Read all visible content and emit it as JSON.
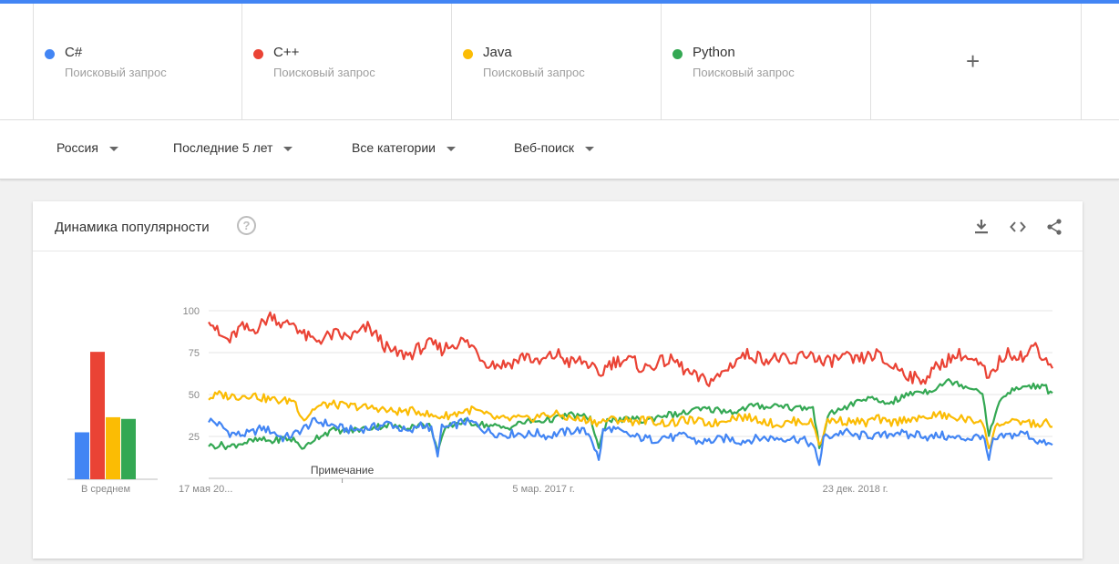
{
  "terms": [
    {
      "name": "C#",
      "subtitle": "Поисковый запрос",
      "color": "#4285f4"
    },
    {
      "name": "C++",
      "subtitle": "Поисковый запрос",
      "color": "#ea4335"
    },
    {
      "name": "Java",
      "subtitle": "Поисковый запрос",
      "color": "#fbbc04"
    },
    {
      "name": "Python",
      "subtitle": "Поисковый запрос",
      "color": "#34a853"
    }
  ],
  "add_term_icon": "+",
  "filters": {
    "region": "Россия",
    "period": "Последние 5 лет",
    "category": "Все категории",
    "search_type": "Веб-поиск"
  },
  "card": {
    "title": "Динамика популярности",
    "help_icon": "?",
    "icons": [
      "download-icon",
      "embed-icon",
      "share-icon"
    ]
  },
  "chart_data": {
    "type": "line",
    "y_ticks": [
      "100",
      "75",
      "50",
      "25"
    ],
    "ylim": [
      0,
      100
    ],
    "x_labels": [
      "17 мая 20...",
      "5 мар. 2017 г.",
      "23 дек. 2018 г."
    ],
    "note_label": "Примечание",
    "average_label": "В среднем",
    "grid": true,
    "averages": [
      {
        "name": "C#",
        "value": 28
      },
      {
        "name": "C++",
        "value": 76
      },
      {
        "name": "Java",
        "value": 37
      },
      {
        "name": "Python",
        "value": 36
      }
    ],
    "anchors": {
      "C#": [
        [
          0,
          35
        ],
        [
          5,
          32
        ],
        [
          10,
          27
        ],
        [
          15,
          26
        ],
        [
          20,
          27
        ],
        [
          25,
          30
        ],
        [
          30,
          28
        ],
        [
          35,
          24
        ],
        [
          40,
          26
        ],
        [
          45,
          30
        ],
        [
          50,
          34
        ],
        [
          55,
          33
        ],
        [
          60,
          31
        ],
        [
          65,
          29
        ],
        [
          70,
          29
        ],
        [
          75,
          30
        ],
        [
          80,
          31
        ],
        [
          85,
          33
        ],
        [
          90,
          30
        ],
        [
          95,
          27
        ],
        [
          100,
          33
        ],
        [
          105,
          29
        ],
        [
          108,
          13
        ],
        [
          110,
          30
        ],
        [
          115,
          31
        ],
        [
          120,
          34
        ],
        [
          125,
          33
        ],
        [
          130,
          29
        ],
        [
          135,
          27
        ],
        [
          140,
          26
        ],
        [
          145,
          27
        ],
        [
          150,
          26
        ],
        [
          155,
          27
        ],
        [
          160,
          25
        ],
        [
          165,
          27
        ],
        [
          170,
          28
        ],
        [
          175,
          29
        ],
        [
          180,
          26
        ],
        [
          184,
          11
        ],
        [
          186,
          28
        ],
        [
          190,
          30
        ],
        [
          195,
          27
        ],
        [
          200,
          25
        ],
        [
          205,
          24
        ],
        [
          210,
          23
        ],
        [
          215,
          25
        ],
        [
          220,
          24
        ],
        [
          225,
          26
        ],
        [
          230,
          22
        ],
        [
          235,
          22
        ],
        [
          240,
          23
        ],
        [
          245,
          24
        ],
        [
          250,
          22
        ],
        [
          255,
          23
        ],
        [
          260,
          24
        ],
        [
          265,
          24
        ],
        [
          270,
          24
        ],
        [
          275,
          24
        ],
        [
          280,
          23
        ],
        [
          285,
          20
        ],
        [
          288,
          8
        ],
        [
          290,
          24
        ],
        [
          295,
          26
        ],
        [
          300,
          28
        ],
        [
          305,
          25
        ],
        [
          310,
          26
        ],
        [
          315,
          25
        ],
        [
          320,
          26
        ],
        [
          325,
          28
        ],
        [
          330,
          25
        ],
        [
          335,
          27
        ],
        [
          340,
          24
        ],
        [
          345,
          26
        ],
        [
          350,
          24
        ],
        [
          355,
          24
        ],
        [
          360,
          24
        ],
        [
          365,
          26
        ],
        [
          368,
          11
        ],
        [
          370,
          22
        ],
        [
          375,
          25
        ],
        [
          380,
          26
        ],
        [
          385,
          27
        ],
        [
          390,
          23
        ],
        [
          395,
          20
        ],
        [
          398,
          20
        ]
      ],
      "C++": [
        [
          0,
          97
        ],
        [
          5,
          85
        ],
        [
          10,
          82
        ],
        [
          15,
          90
        ],
        [
          20,
          88
        ],
        [
          25,
          92
        ],
        [
          30,
          98
        ],
        [
          35,
          91
        ],
        [
          40,
          93
        ],
        [
          45,
          85
        ],
        [
          50,
          82
        ],
        [
          55,
          84
        ],
        [
          60,
          86
        ],
        [
          65,
          84
        ],
        [
          70,
          86
        ],
        [
          75,
          90
        ],
        [
          80,
          84
        ],
        [
          85,
          76
        ],
        [
          90,
          74
        ],
        [
          95,
          74
        ],
        [
          100,
          78
        ],
        [
          105,
          80
        ],
        [
          110,
          77
        ],
        [
          115,
          80
        ],
        [
          120,
          82
        ],
        [
          125,
          78
        ],
        [
          130,
          70
        ],
        [
          135,
          68
        ],
        [
          140,
          68
        ],
        [
          145,
          70
        ],
        [
          150,
          74
        ],
        [
          155,
          68
        ],
        [
          160,
          72
        ],
        [
          165,
          74
        ],
        [
          170,
          69
        ],
        [
          175,
          70
        ],
        [
          180,
          68
        ],
        [
          184,
          60
        ],
        [
          188,
          68
        ],
        [
          195,
          71
        ],
        [
          200,
          70
        ],
        [
          205,
          65
        ],
        [
          210,
          68
        ],
        [
          215,
          70
        ],
        [
          220,
          70
        ],
        [
          225,
          64
        ],
        [
          230,
          60
        ],
        [
          235,
          58
        ],
        [
          240,
          60
        ],
        [
          245,
          66
        ],
        [
          250,
          72
        ],
        [
          255,
          74
        ],
        [
          260,
          72
        ],
        [
          265,
          71
        ],
        [
          270,
          72
        ],
        [
          275,
          67
        ],
        [
          280,
          74
        ],
        [
          285,
          74
        ],
        [
          290,
          68
        ],
        [
          295,
          71
        ],
        [
          300,
          72
        ],
        [
          305,
          70
        ],
        [
          310,
          72
        ],
        [
          315,
          74
        ],
        [
          320,
          68
        ],
        [
          325,
          66
        ],
        [
          330,
          62
        ],
        [
          335,
          58
        ],
        [
          340,
          62
        ],
        [
          345,
          68
        ],
        [
          350,
          72
        ],
        [
          355,
          74
        ],
        [
          360,
          70
        ],
        [
          365,
          66
        ],
        [
          368,
          58
        ],
        [
          372,
          68
        ],
        [
          375,
          73
        ],
        [
          380,
          75
        ],
        [
          385,
          72
        ],
        [
          390,
          80
        ],
        [
          395,
          70
        ],
        [
          398,
          68
        ]
      ],
      "Java": [
        [
          0,
          48
        ],
        [
          5,
          50
        ],
        [
          10,
          49
        ],
        [
          15,
          49
        ],
        [
          20,
          50
        ],
        [
          25,
          48
        ],
        [
          30,
          47
        ],
        [
          35,
          46
        ],
        [
          40,
          47
        ],
        [
          45,
          35
        ],
        [
          50,
          42
        ],
        [
          55,
          44
        ],
        [
          60,
          44
        ],
        [
          65,
          43
        ],
        [
          70,
          43
        ],
        [
          75,
          42
        ],
        [
          80,
          42
        ],
        [
          85,
          40
        ],
        [
          90,
          40
        ],
        [
          95,
          40
        ],
        [
          100,
          40
        ],
        [
          105,
          37
        ],
        [
          110,
          37
        ],
        [
          115,
          38
        ],
        [
          120,
          40
        ],
        [
          125,
          41
        ],
        [
          130,
          38
        ],
        [
          135,
          36
        ],
        [
          140,
          35
        ],
        [
          145,
          36
        ],
        [
          150,
          35
        ],
        [
          155,
          37
        ],
        [
          160,
          38
        ],
        [
          165,
          38
        ],
        [
          170,
          36
        ],
        [
          175,
          35
        ],
        [
          180,
          35
        ],
        [
          184,
          33
        ],
        [
          188,
          35
        ],
        [
          195,
          35
        ],
        [
          200,
          34
        ],
        [
          205,
          35
        ],
        [
          210,
          34
        ],
        [
          215,
          33
        ],
        [
          220,
          33
        ],
        [
          225,
          35
        ],
        [
          230,
          34
        ],
        [
          235,
          33
        ],
        [
          240,
          33
        ],
        [
          245,
          36
        ],
        [
          250,
          37
        ],
        [
          255,
          36
        ],
        [
          260,
          35
        ],
        [
          265,
          33
        ],
        [
          270,
          32
        ],
        [
          275,
          34
        ],
        [
          280,
          34
        ],
        [
          285,
          33
        ],
        [
          288,
          20
        ],
        [
          292,
          34
        ],
        [
          295,
          35
        ],
        [
          300,
          34
        ],
        [
          305,
          34
        ],
        [
          310,
          33
        ],
        [
          315,
          36
        ],
        [
          320,
          33
        ],
        [
          325,
          34
        ],
        [
          330,
          36
        ],
        [
          335,
          35
        ],
        [
          340,
          37
        ],
        [
          345,
          38
        ],
        [
          350,
          36
        ],
        [
          355,
          36
        ],
        [
          360,
          34
        ],
        [
          365,
          35
        ],
        [
          368,
          18
        ],
        [
          372,
          33
        ],
        [
          375,
          33
        ],
        [
          380,
          33
        ],
        [
          385,
          34
        ],
        [
          390,
          32
        ],
        [
          395,
          33
        ],
        [
          398,
          30
        ]
      ],
      "Python": [
        [
          0,
          19
        ],
        [
          5,
          20
        ],
        [
          10,
          19
        ],
        [
          15,
          21
        ],
        [
          20,
          22
        ],
        [
          25,
          23
        ],
        [
          30,
          22
        ],
        [
          35,
          24
        ],
        [
          40,
          23
        ],
        [
          45,
          18
        ],
        [
          50,
          24
        ],
        [
          55,
          27
        ],
        [
          60,
          29
        ],
        [
          65,
          28
        ],
        [
          70,
          29
        ],
        [
          75,
          30
        ],
        [
          80,
          31
        ],
        [
          85,
          32
        ],
        [
          90,
          30
        ],
        [
          95,
          31
        ],
        [
          100,
          32
        ],
        [
          105,
          31
        ],
        [
          108,
          16
        ],
        [
          112,
          30
        ],
        [
          115,
          32
        ],
        [
          120,
          34
        ],
        [
          125,
          33
        ],
        [
          130,
          32
        ],
        [
          135,
          31
        ],
        [
          140,
          30
        ],
        [
          145,
          32
        ],
        [
          150,
          34
        ],
        [
          155,
          34
        ],
        [
          160,
          35
        ],
        [
          165,
          36
        ],
        [
          170,
          38
        ],
        [
          175,
          37
        ],
        [
          180,
          36
        ],
        [
          184,
          18
        ],
        [
          188,
          36
        ],
        [
          195,
          34
        ],
        [
          200,
          36
        ],
        [
          205,
          34
        ],
        [
          210,
          36
        ],
        [
          215,
          38
        ],
        [
          220,
          38
        ],
        [
          225,
          39
        ],
        [
          230,
          41
        ],
        [
          235,
          41
        ],
        [
          240,
          41
        ],
        [
          245,
          40
        ],
        [
          250,
          40
        ],
        [
          255,
          43
        ],
        [
          260,
          43
        ],
        [
          265,
          43
        ],
        [
          270,
          44
        ],
        [
          275,
          42
        ],
        [
          280,
          42
        ],
        [
          285,
          42
        ],
        [
          288,
          18
        ],
        [
          292,
          36
        ],
        [
          295,
          40
        ],
        [
          300,
          42
        ],
        [
          305,
          45
        ],
        [
          310,
          48
        ],
        [
          315,
          46
        ],
        [
          320,
          45
        ],
        [
          325,
          47
        ],
        [
          330,
          50
        ],
        [
          335,
          52
        ],
        [
          340,
          52
        ],
        [
          345,
          56
        ],
        [
          350,
          58
        ],
        [
          355,
          56
        ],
        [
          360,
          54
        ],
        [
          365,
          52
        ],
        [
          368,
          24
        ],
        [
          372,
          44
        ],
        [
          375,
          48
        ],
        [
          380,
          53
        ],
        [
          385,
          55
        ],
        [
          390,
          55
        ],
        [
          395,
          54
        ],
        [
          398,
          49
        ]
      ]
    }
  }
}
